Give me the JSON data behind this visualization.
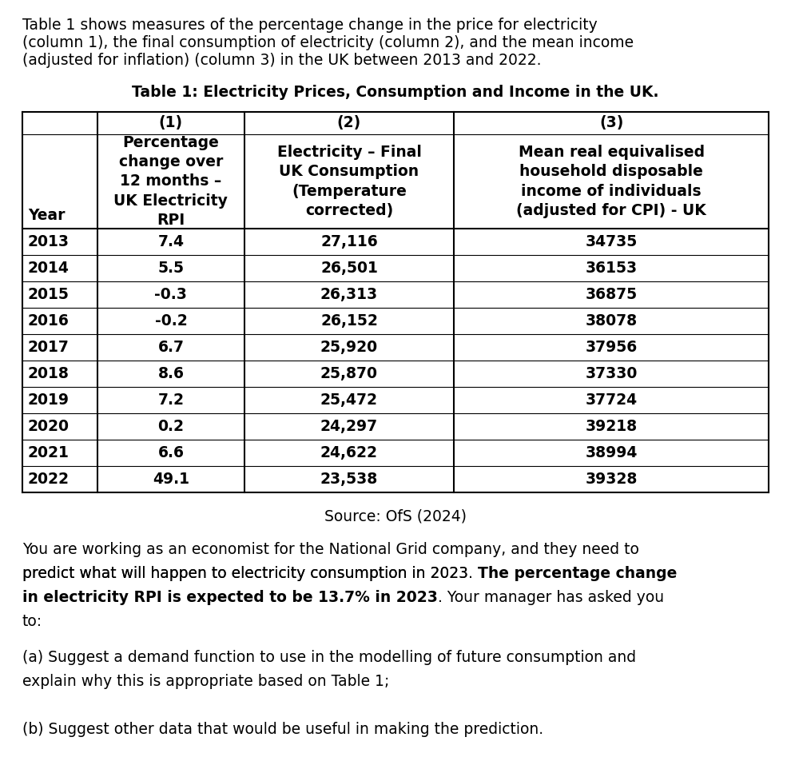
{
  "intro_text_lines": [
    "Table 1 shows measures of the percentage change in the price for electricity",
    "(column 1), the final consumption of electricity (column 2), and the mean income",
    "(adjusted for inflation) (column 3) in the UK between 2013 and 2022."
  ],
  "table_title": "Table 1: Electricity Prices, Consumption and Income in the UK.",
  "col_headers_line1": [
    "",
    "(1)",
    "(2)",
    "(3)"
  ],
  "col_headers_main": [
    "Year",
    "Percentage\nchange over\n12 months –\nUK Electricity\nRPI",
    "Electricity – Final\nUK Consumption\n(Temperature\ncorrected)",
    "Mean real equivalised\nhousehold disposable\nincome of individuals\n(adjusted for CPI) - UK"
  ],
  "rows": [
    [
      "2013",
      "7.4",
      "27,116",
      "34735"
    ],
    [
      "2014",
      "5.5",
      "26,501",
      "36153"
    ],
    [
      "2015",
      "-0.3",
      "26,313",
      "36875"
    ],
    [
      "2016",
      "-0.2",
      "26,152",
      "38078"
    ],
    [
      "2017",
      "6.7",
      "25,920",
      "37956"
    ],
    [
      "2018",
      "8.6",
      "25,870",
      "37330"
    ],
    [
      "2019",
      "7.2",
      "25,472",
      "37724"
    ],
    [
      "2020",
      "0.2",
      "24,297",
      "39218"
    ],
    [
      "2021",
      "6.6",
      "24,622",
      "38994"
    ],
    [
      "2022",
      "49.1",
      "23,538",
      "39328"
    ]
  ],
  "source_text": "Source: OfS (2024)",
  "bg_color": "#ffffff",
  "text_color": "#000000",
  "font_family": "DejaVu Sans",
  "font_size": 13.5,
  "table_font_size": 13.5
}
